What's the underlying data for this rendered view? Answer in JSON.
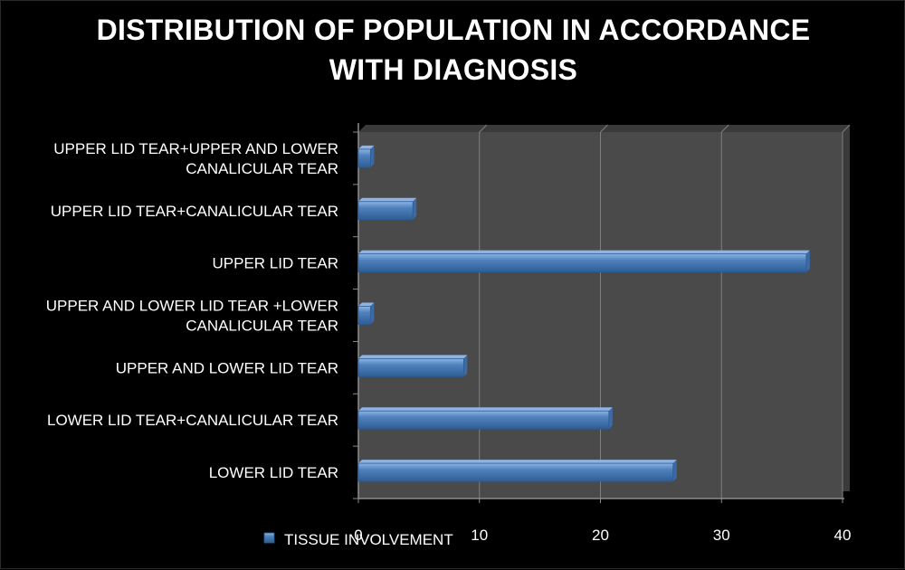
{
  "colors": {
    "background": "#000000",
    "plot_area": "#4a4a4a",
    "bar": "#4f81bd",
    "bar_highlight": "#8eb4e3",
    "gridline": "#7f7f7f",
    "axis": "#8c8c8c"
  },
  "chart_data": {
    "type": "bar",
    "orientation": "horizontal",
    "title_lines": [
      "DISTRIBUTION OF POPULATION IN ACCORDANCE",
      "WITH DIAGNOSIS"
    ],
    "categories": [
      [
        "UPPER LID TEAR+UPPER AND LOWER",
        "CANALICULAR TEAR"
      ],
      [
        "UPPER LID TEAR+CANALICULAR TEAR"
      ],
      [
        "UPPER LID TEAR"
      ],
      [
        "UPPER AND LOWER LID TEAR +LOWER",
        "CANALICULAR TEAR"
      ],
      [
        "UPPER AND LOWER LID TEAR"
      ],
      [
        "LOWER LID TEAR+CANALICULAR TEAR"
      ],
      [
        "LOWER LID TEAR"
      ]
    ],
    "series": [
      {
        "name": "TISSUE INVOLVEMENT",
        "values": [
          1,
          4.5,
          37,
          1,
          8.7,
          20.7,
          26
        ]
      }
    ],
    "xlim": [
      0,
      40
    ],
    "xticks": [
      "0",
      "10",
      "20",
      "30",
      "40"
    ],
    "grid": true,
    "legend": "bottom-left"
  }
}
